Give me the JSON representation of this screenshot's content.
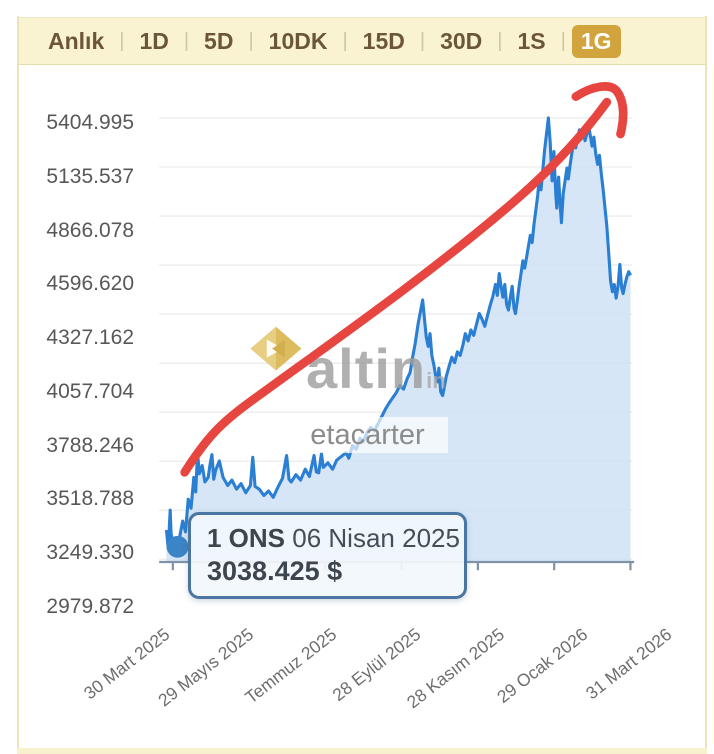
{
  "tabbar": {
    "items": [
      {
        "label": "Anlık",
        "active": false
      },
      {
        "label": "1D",
        "active": false
      },
      {
        "label": "5D",
        "active": false
      },
      {
        "label": "10DK",
        "active": false
      },
      {
        "label": "15D",
        "active": false
      },
      {
        "label": "30D",
        "active": false
      },
      {
        "label": "1S",
        "active": false
      },
      {
        "label": "1G",
        "active": true
      }
    ]
  },
  "tooltip": {
    "asset": "1 ONS",
    "date": "06 Nisan 2025",
    "price": "3038.425 $"
  },
  "watermark": {
    "brand": "altin",
    "suffix": "in",
    "subtext": "etacarter",
    "logo": "gold-diamond-logo"
  },
  "colors": {
    "tabbar_bg": "#faf3d1",
    "tab_text": "#6b563a",
    "tab_active_bg": "#d1a43e",
    "tab_active_text": "#ffffff",
    "line": "#2b7fd3",
    "fill": "#cfe2f4",
    "marker": "#3b84c6",
    "grid": "#ececec",
    "axis": "#7f93a8",
    "y_label": "#58585a",
    "x_label": "#6e6e6e",
    "tooltip_border": "#4a76a1",
    "tooltip_bg": "#f2f7fc",
    "annotation_arrow": "#e64540"
  },
  "chart_data": {
    "type": "area",
    "title": "1 ONS (gold ounce) price in $, 1 year view",
    "legend": [],
    "grid": true,
    "ylim": [
      2979.872,
      5404.995
    ],
    "y_ticks": [
      5404.995,
      5135.537,
      4866.078,
      4596.62,
      4327.162,
      4057.704,
      3788.246,
      3518.788,
      3249.33,
      2979.872
    ],
    "x_ticks": [
      "30 Mart 2025",
      "29 Mayıs 2025",
      "Temmuz 2025",
      "28 Eylül 2025",
      "28 Kasım 2025",
      "29 Ocak 2026",
      "31 Mart 2026"
    ],
    "marker": {
      "t": 0.024,
      "value": 3038.425,
      "label": "1 ONS 06 Nisan 2025 — 3038.425 $"
    },
    "series": [
      {
        "name": "1 ONS $",
        "points": [
          [
            0.0,
            3140
          ],
          [
            0.004,
            3040
          ],
          [
            0.008,
            3250
          ],
          [
            0.01,
            3120
          ],
          [
            0.014,
            3060
          ],
          [
            0.018,
            3000
          ],
          [
            0.024,
            3038
          ],
          [
            0.029,
            3110
          ],
          [
            0.035,
            3190
          ],
          [
            0.041,
            3130
          ],
          [
            0.047,
            3310
          ],
          [
            0.053,
            3260
          ],
          [
            0.059,
            3430
          ],
          [
            0.063,
            3350
          ],
          [
            0.067,
            3565
          ],
          [
            0.071,
            3450
          ],
          [
            0.077,
            3495
          ],
          [
            0.083,
            3405
          ],
          [
            0.09,
            3430
          ],
          [
            0.094,
            3500
          ],
          [
            0.098,
            3555
          ],
          [
            0.102,
            3420
          ],
          [
            0.106,
            3470
          ],
          [
            0.114,
            3520
          ],
          [
            0.122,
            3430
          ],
          [
            0.132,
            3385
          ],
          [
            0.141,
            3415
          ],
          [
            0.151,
            3365
          ],
          [
            0.161,
            3395
          ],
          [
            0.171,
            3345
          ],
          [
            0.181,
            3385
          ],
          [
            0.186,
            3540
          ],
          [
            0.191,
            3380
          ],
          [
            0.2,
            3365
          ],
          [
            0.21,
            3330
          ],
          [
            0.22,
            3355
          ],
          [
            0.23,
            3320
          ],
          [
            0.24,
            3375
          ],
          [
            0.25,
            3425
          ],
          [
            0.259,
            3550
          ],
          [
            0.264,
            3420
          ],
          [
            0.269,
            3405
          ],
          [
            0.279,
            3445
          ],
          [
            0.289,
            3415
          ],
          [
            0.299,
            3475
          ],
          [
            0.308,
            3435
          ],
          [
            0.318,
            3550
          ],
          [
            0.323,
            3460
          ],
          [
            0.328,
            3455
          ],
          [
            0.334,
            3560
          ],
          [
            0.338,
            3485
          ],
          [
            0.348,
            3510
          ],
          [
            0.358,
            3475
          ],
          [
            0.367,
            3525
          ],
          [
            0.377,
            3545
          ],
          [
            0.387,
            3565
          ],
          [
            0.393,
            3535
          ],
          [
            0.401,
            3605
          ],
          [
            0.409,
            3585
          ],
          [
            0.417,
            3645
          ],
          [
            0.424,
            3625
          ],
          [
            0.432,
            3675
          ],
          [
            0.44,
            3705
          ],
          [
            0.448,
            3685
          ],
          [
            0.456,
            3725
          ],
          [
            0.464,
            3765
          ],
          [
            0.472,
            3805
          ],
          [
            0.479,
            3835
          ],
          [
            0.487,
            3865
          ],
          [
            0.495,
            3895
          ],
          [
            0.503,
            3935
          ],
          [
            0.511,
            3915
          ],
          [
            0.519,
            3975
          ],
          [
            0.525,
            4005
          ],
          [
            0.53,
            4085
          ],
          [
            0.536,
            4165
          ],
          [
            0.542,
            4270
          ],
          [
            0.548,
            4350
          ],
          [
            0.552,
            4405
          ],
          [
            0.556,
            4300
          ],
          [
            0.56,
            4200
          ],
          [
            0.564,
            4150
          ],
          [
            0.568,
            4220
          ],
          [
            0.572,
            4100
          ],
          [
            0.576,
            4050
          ],
          [
            0.58,
            3990
          ],
          [
            0.584,
            3955
          ],
          [
            0.587,
            4030
          ],
          [
            0.591,
            3900
          ],
          [
            0.595,
            3880
          ],
          [
            0.599,
            3930
          ],
          [
            0.603,
            3985
          ],
          [
            0.609,
            4040
          ],
          [
            0.615,
            4090
          ],
          [
            0.621,
            4060
          ],
          [
            0.627,
            4120
          ],
          [
            0.633,
            4100
          ],
          [
            0.639,
            4160
          ],
          [
            0.644,
            4220
          ],
          [
            0.65,
            4180
          ],
          [
            0.656,
            4240
          ],
          [
            0.662,
            4210
          ],
          [
            0.668,
            4270
          ],
          [
            0.674,
            4330
          ],
          [
            0.68,
            4300
          ],
          [
            0.686,
            4260
          ],
          [
            0.692,
            4320
          ],
          [
            0.698,
            4380
          ],
          [
            0.703,
            4420
          ],
          [
            0.709,
            4490
          ],
          [
            0.713,
            4430
          ],
          [
            0.717,
            4550
          ],
          [
            0.721,
            4480
          ],
          [
            0.725,
            4420
          ],
          [
            0.729,
            4490
          ],
          [
            0.733,
            4380
          ],
          [
            0.737,
            4350
          ],
          [
            0.741,
            4420
          ],
          [
            0.745,
            4480
          ],
          [
            0.749,
            4360
          ],
          [
            0.752,
            4330
          ],
          [
            0.756,
            4400
          ],
          [
            0.76,
            4480
          ],
          [
            0.764,
            4550
          ],
          [
            0.768,
            4620
          ],
          [
            0.772,
            4580
          ],
          [
            0.776,
            4640
          ],
          [
            0.78,
            4700
          ],
          [
            0.784,
            4760
          ],
          [
            0.788,
            4720
          ],
          [
            0.792,
            4820
          ],
          [
            0.796,
            4900
          ],
          [
            0.8,
            4980
          ],
          [
            0.803,
            5060
          ],
          [
            0.807,
            5010
          ],
          [
            0.811,
            5120
          ],
          [
            0.815,
            5230
          ],
          [
            0.819,
            5320
          ],
          [
            0.823,
            5405
          ],
          [
            0.827,
            5270
          ],
          [
            0.829,
            5150
          ],
          [
            0.831,
            5060
          ],
          [
            0.833,
            5150
          ],
          [
            0.835,
            5220
          ],
          [
            0.837,
            5100
          ],
          [
            0.839,
            4980
          ],
          [
            0.841,
            4910
          ],
          [
            0.843,
            5010
          ],
          [
            0.845,
            5080
          ],
          [
            0.847,
            4990
          ],
          [
            0.849,
            4910
          ],
          [
            0.851,
            4830
          ],
          [
            0.853,
            4910
          ],
          [
            0.855,
            4990
          ],
          [
            0.859,
            5060
          ],
          [
            0.863,
            5130
          ],
          [
            0.866,
            5070
          ],
          [
            0.87,
            5150
          ],
          [
            0.874,
            5220
          ],
          [
            0.878,
            5280
          ],
          [
            0.882,
            5240
          ],
          [
            0.886,
            5300
          ],
          [
            0.89,
            5340
          ],
          [
            0.894,
            5290
          ],
          [
            0.898,
            5330
          ],
          [
            0.902,
            5280
          ],
          [
            0.906,
            5320
          ],
          [
            0.91,
            5355
          ],
          [
            0.914,
            5300
          ],
          [
            0.917,
            5250
          ],
          [
            0.921,
            5300
          ],
          [
            0.925,
            5210
          ],
          [
            0.929,
            5150
          ],
          [
            0.933,
            5200
          ],
          [
            0.937,
            5100
          ],
          [
            0.941,
            5010
          ],
          [
            0.945,
            4910
          ],
          [
            0.949,
            4810
          ],
          [
            0.953,
            4660
          ],
          [
            0.957,
            4510
          ],
          [
            0.961,
            4450
          ],
          [
            0.965,
            4490
          ],
          [
            0.969,
            4415
          ],
          [
            0.973,
            4480
          ],
          [
            0.977,
            4600
          ],
          [
            0.981,
            4470
          ],
          [
            0.984,
            4440
          ],
          [
            0.988,
            4490
          ],
          [
            0.992,
            4530
          ],
          [
            0.996,
            4560
          ],
          [
            1.0,
            4540
          ]
        ]
      }
    ],
    "annotations": [
      "hand-drawn red upward trend arrow from marker point to right peak"
    ]
  }
}
